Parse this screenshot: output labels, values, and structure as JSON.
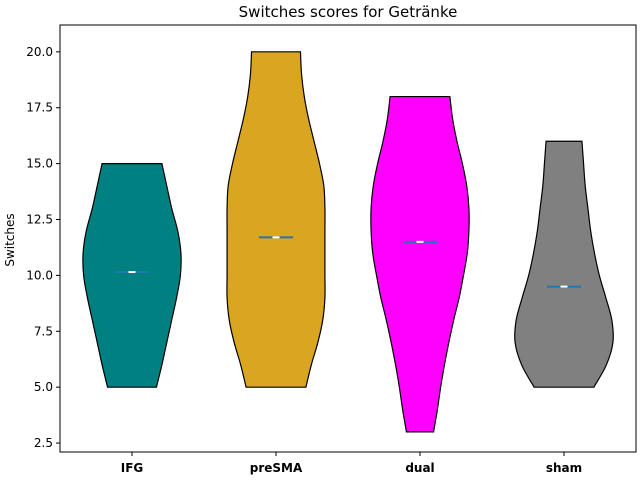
{
  "chart_data": {
    "type": "violin",
    "title": "Switches scores for Getränke",
    "xlabel": "",
    "ylabel": "Switches",
    "ylim": [
      2.1,
      21.2
    ],
    "yticks": [
      "2.5",
      "5.0",
      "7.5",
      "10.0",
      "12.5",
      "15.0",
      "17.5",
      "20.0"
    ],
    "grid": false,
    "categories": [
      "IFG",
      "preSMA",
      "dual",
      "sham"
    ],
    "series": [
      {
        "category": "IFG",
        "color": "#008080",
        "min": 5,
        "max": 15,
        "mean": 10.15,
        "median": 10.15,
        "shape": [
          [
            5.0,
            0.45
          ],
          [
            6.0,
            0.55
          ],
          [
            7.0,
            0.64
          ],
          [
            8.0,
            0.73
          ],
          [
            9.0,
            0.82
          ],
          [
            10.0,
            0.89
          ],
          [
            11.0,
            0.9
          ],
          [
            12.0,
            0.84
          ],
          [
            13.0,
            0.73
          ],
          [
            14.0,
            0.64
          ],
          [
            15.0,
            0.55
          ]
        ]
      },
      {
        "category": "preSMA",
        "color": "#DAA520",
        "min": 5,
        "max": 20,
        "mean": 11.7,
        "median": 11.7,
        "shape": [
          [
            5.0,
            0.55
          ],
          [
            6.0,
            0.65
          ],
          [
            7.0,
            0.77
          ],
          [
            8.0,
            0.86
          ],
          [
            9.0,
            0.9
          ],
          [
            10.0,
            0.9
          ],
          [
            11.0,
            0.9
          ],
          [
            12.0,
            0.9
          ],
          [
            13.0,
            0.9
          ],
          [
            14.0,
            0.88
          ],
          [
            15.0,
            0.8
          ],
          [
            16.0,
            0.7
          ],
          [
            17.0,
            0.6
          ],
          [
            18.0,
            0.52
          ],
          [
            19.0,
            0.47
          ],
          [
            20.0,
            0.45
          ]
        ]
      },
      {
        "category": "dual",
        "color": "#FF00FF",
        "min": 3,
        "max": 18,
        "mean": 11.5,
        "median": 11.5,
        "shape": [
          [
            3.0,
            0.25
          ],
          [
            4.0,
            0.32
          ],
          [
            5.0,
            0.38
          ],
          [
            6.0,
            0.45
          ],
          [
            7.0,
            0.53
          ],
          [
            8.0,
            0.62
          ],
          [
            9.0,
            0.72
          ],
          [
            10.0,
            0.8
          ],
          [
            11.0,
            0.87
          ],
          [
            12.0,
            0.9
          ],
          [
            13.0,
            0.9
          ],
          [
            14.0,
            0.86
          ],
          [
            15.0,
            0.78
          ],
          [
            16.0,
            0.68
          ],
          [
            17.0,
            0.6
          ],
          [
            18.0,
            0.55
          ]
        ]
      },
      {
        "category": "sham",
        "color": "#808080",
        "min": 5,
        "max": 16,
        "mean": 9.5,
        "median": 9.5,
        "shape": [
          [
            5.0,
            0.55
          ],
          [
            6.0,
            0.78
          ],
          [
            7.0,
            0.9
          ],
          [
            8.0,
            0.88
          ],
          [
            9.0,
            0.77
          ],
          [
            10.0,
            0.65
          ],
          [
            11.0,
            0.56
          ],
          [
            12.0,
            0.49
          ],
          [
            13.0,
            0.44
          ],
          [
            14.0,
            0.39
          ],
          [
            15.0,
            0.36
          ],
          [
            16.0,
            0.33
          ]
        ]
      }
    ]
  }
}
